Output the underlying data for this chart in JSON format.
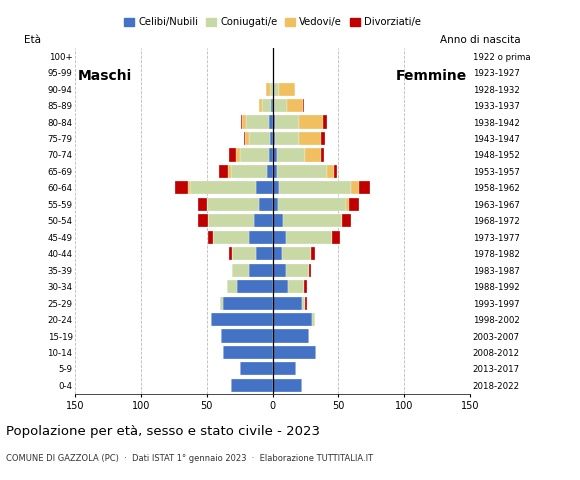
{
  "age_groups": [
    "0-4",
    "5-9",
    "10-14",
    "15-19",
    "20-24",
    "25-29",
    "30-34",
    "35-39",
    "40-44",
    "45-49",
    "50-54",
    "55-59",
    "60-64",
    "65-69",
    "70-74",
    "75-79",
    "80-84",
    "85-89",
    "90-94",
    "95-99",
    "100+"
  ],
  "birth_years": [
    "2018-2022",
    "2013-2017",
    "2008-2012",
    "2003-2007",
    "1998-2002",
    "1993-1997",
    "1988-1992",
    "1983-1987",
    "1978-1982",
    "1973-1977",
    "1968-1972",
    "1963-1967",
    "1958-1962",
    "1953-1957",
    "1948-1952",
    "1943-1947",
    "1938-1942",
    "1933-1937",
    "1928-1932",
    "1923-1927",
    "1922 o prima"
  ],
  "male_celibe": [
    32,
    25,
    38,
    39,
    47,
    38,
    27,
    18,
    13,
    18,
    14,
    10,
    13,
    4,
    3,
    2,
    3,
    1,
    0,
    0,
    0
  ],
  "male_coniugato": [
    0,
    0,
    0,
    0,
    0,
    2,
    8,
    13,
    18,
    27,
    35,
    40,
    50,
    28,
    22,
    16,
    17,
    7,
    2,
    0,
    0
  ],
  "male_vedovo": [
    0,
    0,
    0,
    0,
    0,
    0,
    0,
    0,
    0,
    0,
    0,
    0,
    1,
    2,
    3,
    3,
    3,
    2,
    3,
    0,
    0
  ],
  "male_divorziato": [
    0,
    0,
    0,
    0,
    0,
    0,
    0,
    0,
    2,
    4,
    8,
    7,
    10,
    7,
    5,
    1,
    1,
    0,
    0,
    0,
    0
  ],
  "female_celibe": [
    22,
    18,
    33,
    28,
    30,
    22,
    12,
    10,
    7,
    10,
    8,
    4,
    5,
    3,
    3,
    2,
    2,
    1,
    0,
    0,
    0
  ],
  "female_coniugato": [
    0,
    0,
    0,
    0,
    2,
    3,
    12,
    18,
    22,
    35,
    45,
    52,
    55,
    38,
    22,
    18,
    18,
    10,
    5,
    0,
    0
  ],
  "female_vedovo": [
    0,
    0,
    0,
    0,
    0,
    0,
    0,
    0,
    0,
    0,
    0,
    2,
    6,
    6,
    12,
    17,
    18,
    12,
    12,
    0,
    1
  ],
  "female_divorziato": [
    0,
    0,
    0,
    0,
    0,
    1,
    2,
    1,
    3,
    6,
    7,
    8,
    8,
    2,
    2,
    3,
    3,
    1,
    0,
    0,
    0
  ],
  "color_celibe": "#4472c4",
  "color_coniugato": "#c8d9a5",
  "color_vedovo": "#f0c060",
  "color_divorziato": "#c00000",
  "title": "Popolazione per età, sesso e stato civile - 2023",
  "subtitle": "COMUNE DI GAZZOLA (PC)  ·  Dati ISTAT 1° gennaio 2023  ·  Elaborazione TUTTITALIA.IT",
  "ylabel_left": "Età",
  "ylabel_right": "Anno di nascita",
  "label_maschi": "Maschi",
  "label_femmine": "Femmine",
  "legend_celibe": "Celibi/Nubili",
  "legend_coniugato": "Coniugati/e",
  "legend_vedovo": "Vedovi/e",
  "legend_divorziato": "Divorziati/e"
}
